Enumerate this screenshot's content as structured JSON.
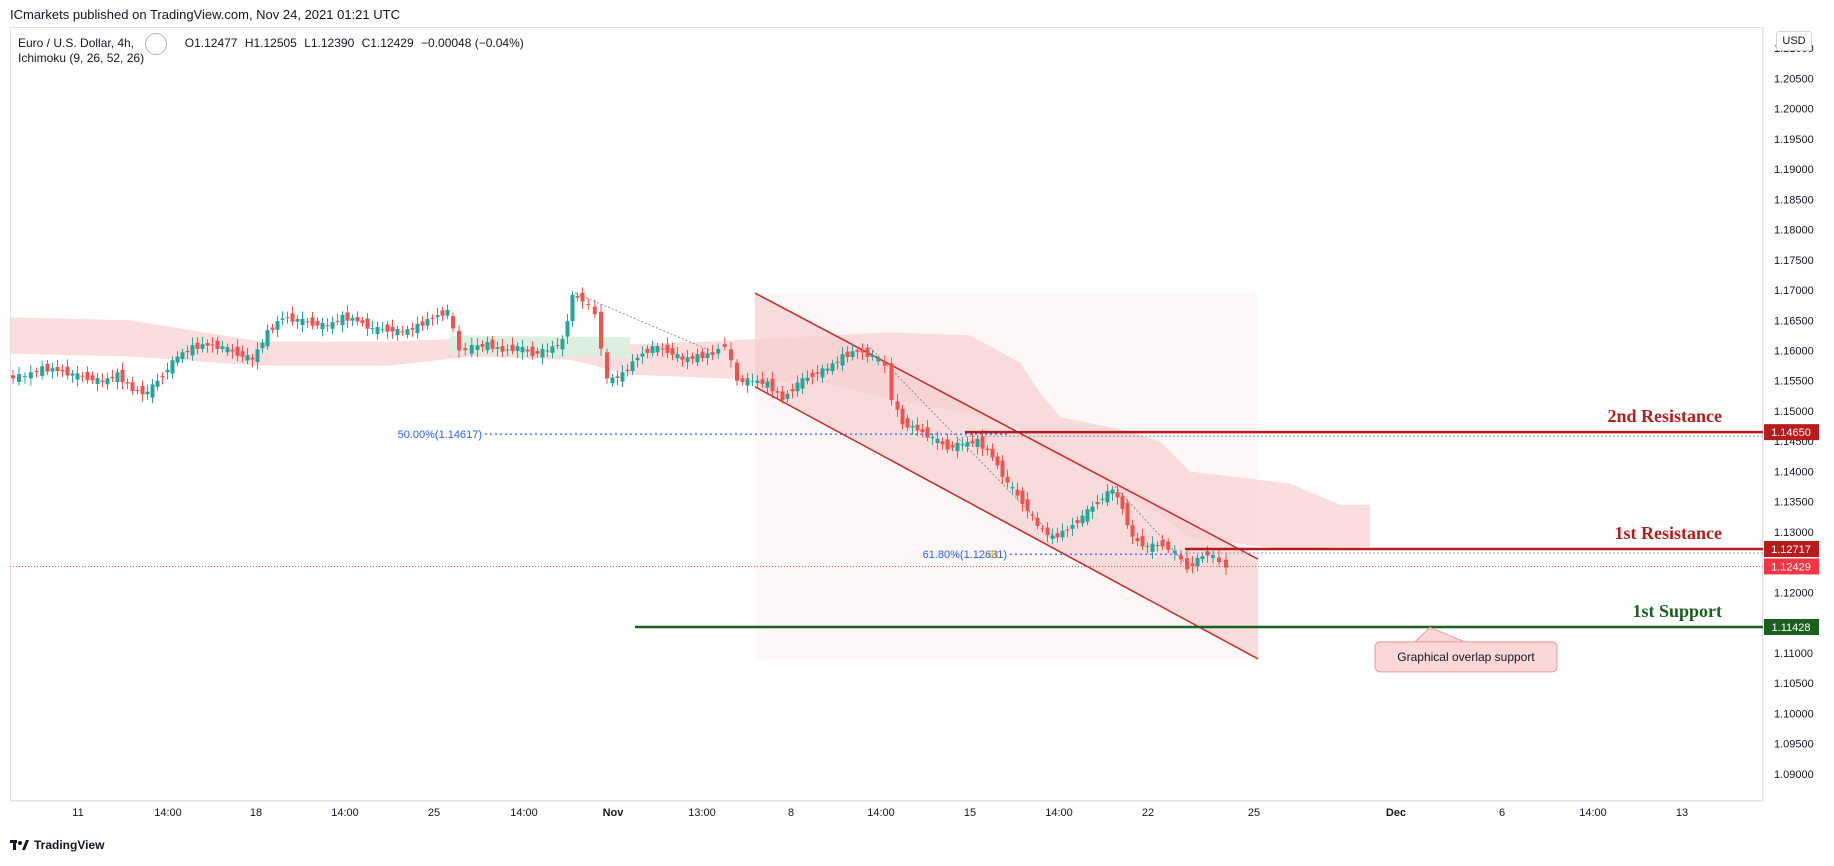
{
  "header": {
    "published_text": "ICmarkets published on TradingView.com, Nov 24, 2021 01:21 UTC"
  },
  "legend": {
    "symbol": "Euro / U.S. Dollar, 4h,",
    "open": "O1.12477",
    "high": "H1.12505",
    "low": "L1.12390",
    "close": "C1.12429",
    "change": "−0.00048 (−0.04%)",
    "indicator": "Ichimoku (9, 26, 52, 26)"
  },
  "currency": "USD",
  "footer": {
    "brand": "TradingView",
    "logo_icon": "tradingview-logo-icon"
  },
  "colors": {
    "up": "#26a69a",
    "down": "#ef5350",
    "resistance": "#b71c1c",
    "support": "#1b5e20",
    "fib": "#2962ff",
    "cloud_bear": "#fbd7d7",
    "cloud_bull": "#d8efdf",
    "channel_fill": "#f6d0d0"
  },
  "chart_data": {
    "type": "candlestick",
    "y_axis": {
      "ylim": [
        1.0855,
        1.2135
      ],
      "tick_values": [
        1.09,
        1.095,
        1.1,
        1.105,
        1.11,
        1.115,
        1.12,
        1.125,
        1.13,
        1.135,
        1.14,
        1.145,
        1.15,
        1.155,
        1.16,
        1.165,
        1.17,
        1.175,
        1.18,
        1.185,
        1.19,
        1.195,
        1.2,
        1.205,
        1.21
      ],
      "tick_labels": [
        "1.09000",
        "1.09500",
        "1.10000",
        "1.10500",
        "1.11000",
        "1.11500",
        "1.12000",
        "1.12500",
        "1.13000",
        "1.13500",
        "1.14000",
        "1.14500",
        "1.15000",
        "1.15500",
        "1.16000",
        "1.16500",
        "1.17000",
        "1.17500",
        "1.18000",
        "1.18500",
        "1.19000",
        "1.19500",
        "1.20000",
        "1.20500",
        "1.21000"
      ]
    },
    "x_axis": {
      "labels": [
        "11",
        "14:00",
        "18",
        "14:00",
        "25",
        "14:00",
        "Nov",
        "13:00",
        "8",
        "14:00",
        "15",
        "14:00",
        "22",
        "25",
        "Dec",
        "6",
        "14:00",
        "13"
      ],
      "bold": [
        false,
        false,
        false,
        false,
        false,
        false,
        true,
        false,
        false,
        false,
        false,
        false,
        false,
        false,
        true,
        false,
        false,
        false
      ]
    },
    "price_path": [
      [
        0,
        1.1555
      ],
      [
        18,
        1.1558
      ],
      [
        35,
        1.157
      ],
      [
        50,
        1.1568
      ],
      [
        65,
        1.156
      ],
      [
        80,
        1.1555
      ],
      [
        95,
        1.1548
      ],
      [
        110,
        1.156
      ],
      [
        125,
        1.1535
      ],
      [
        140,
        1.153
      ],
      [
        155,
        1.156
      ],
      [
        170,
        1.159
      ],
      [
        185,
        1.1605
      ],
      [
        200,
        1.161
      ],
      [
        215,
        1.1605
      ],
      [
        230,
        1.1595
      ],
      [
        245,
        1.1585
      ],
      [
        260,
        1.163
      ],
      [
        275,
        1.1655
      ],
      [
        290,
        1.165
      ],
      [
        305,
        1.1645
      ],
      [
        320,
        1.164
      ],
      [
        335,
        1.1655
      ],
      [
        350,
        1.165
      ],
      [
        365,
        1.1635
      ],
      [
        380,
        1.1635
      ],
      [
        395,
        1.163
      ],
      [
        410,
        1.164
      ],
      [
        425,
        1.1655
      ],
      [
        440,
        1.1665
      ],
      [
        452,
        1.16
      ],
      [
        465,
        1.1605
      ],
      [
        480,
        1.161
      ],
      [
        495,
        1.16
      ],
      [
        510,
        1.1605
      ],
      [
        525,
        1.1595
      ],
      [
        540,
        1.16
      ],
      [
        555,
        1.1615
      ],
      [
        565,
        1.169
      ],
      [
        575,
        1.1685
      ],
      [
        588,
        1.166
      ],
      [
        600,
        1.155
      ],
      [
        615,
        1.156
      ],
      [
        630,
        1.159
      ],
      [
        645,
        1.1605
      ],
      [
        660,
        1.16
      ],
      [
        675,
        1.1585
      ],
      [
        690,
        1.159
      ],
      [
        705,
        1.1595
      ],
      [
        718,
        1.161
      ],
      [
        730,
        1.155
      ],
      [
        745,
        1.155
      ],
      [
        760,
        1.1545
      ],
      [
        775,
        1.152
      ],
      [
        790,
        1.1545
      ],
      [
        805,
        1.156
      ],
      [
        820,
        1.157
      ],
      [
        835,
        1.159
      ],
      [
        850,
        1.16
      ],
      [
        865,
        1.159
      ],
      [
        878,
        1.1575
      ],
      [
        885,
        1.152
      ],
      [
        895,
        1.148
      ],
      [
        910,
        1.147
      ],
      [
        925,
        1.1455
      ],
      [
        940,
        1.144
      ],
      [
        955,
        1.1445
      ],
      [
        970,
        1.145
      ],
      [
        985,
        1.1425
      ],
      [
        1000,
        1.138
      ],
      [
        1015,
        1.135
      ],
      [
        1030,
        1.131
      ],
      [
        1045,
        1.129
      ],
      [
        1060,
        1.1305
      ],
      [
        1075,
        1.1325
      ],
      [
        1090,
        1.135
      ],
      [
        1105,
        1.137
      ],
      [
        1115,
        1.134
      ],
      [
        1125,
        1.129
      ],
      [
        1140,
        1.1275
      ],
      [
        1155,
        1.128
      ],
      [
        1168,
        1.1265
      ],
      [
        1180,
        1.124
      ],
      [
        1190,
        1.1255
      ],
      [
        1200,
        1.1265
      ],
      [
        1212,
        1.125
      ],
      [
        1220,
        1.1243
      ]
    ],
    "ichimoku_cloud": {
      "top": [
        [
          0,
          1.1655
        ],
        [
          120,
          1.165
        ],
        [
          250,
          1.1615
        ],
        [
          380,
          1.1615
        ],
        [
          460,
          1.162
        ],
        [
          560,
          1.162
        ],
        [
          620,
          1.161
        ],
        [
          700,
          1.1615
        ],
        [
          760,
          1.162
        ],
        [
          820,
          1.1625
        ],
        [
          880,
          1.163
        ],
        [
          960,
          1.1625
        ],
        [
          1010,
          1.158
        ],
        [
          1030,
          1.153
        ],
        [
          1050,
          1.149
        ],
        [
          1080,
          1.148
        ],
        [
          1110,
          1.147
        ],
        [
          1150,
          1.145
        ],
        [
          1180,
          1.14
        ],
        [
          1230,
          1.139
        ],
        [
          1280,
          1.138
        ],
        [
          1330,
          1.1345
        ],
        [
          1360,
          1.1345
        ]
      ],
      "bottom": [
        [
          0,
          1.1595
        ],
        [
          120,
          1.159
        ],
        [
          250,
          1.1575
        ],
        [
          380,
          1.1575
        ],
        [
          460,
          1.159
        ],
        [
          560,
          1.1585
        ],
        [
          620,
          1.156
        ],
        [
          700,
          1.1555
        ],
        [
          760,
          1.155
        ],
        [
          820,
          1.1545
        ],
        [
          880,
          1.152
        ],
        [
          960,
          1.1495
        ],
        [
          1010,
          1.147
        ],
        [
          1030,
          1.144
        ],
        [
          1050,
          1.142
        ],
        [
          1080,
          1.14
        ],
        [
          1110,
          1.137
        ],
        [
          1150,
          1.133
        ],
        [
          1180,
          1.129
        ],
        [
          1230,
          1.128
        ],
        [
          1280,
          1.127
        ],
        [
          1330,
          1.1275
        ],
        [
          1360,
          1.1275
        ]
      ]
    },
    "channel": {
      "upper_start": [
        745,
        1.1695
      ],
      "upper_end": [
        1248,
        1.1255
      ],
      "lower_start": [
        745,
        1.154
      ],
      "lower_end": [
        1248,
        1.109
      ],
      "shade_right_x": 1248
    },
    "fib_levels": [
      {
        "label": "50.00%(1.14617)",
        "value": 1.14617,
        "x_start": 475,
        "x_end": 1000
      },
      {
        "label": "61.80%(1.12631)",
        "value": 1.12631,
        "x_start": 1000,
        "x_end": 1175
      }
    ],
    "fib_overlap_label": "61",
    "levels": [
      {
        "name": "2nd Resistance",
        "value": 1.1465,
        "price_label": "1.14650",
        "x_start": 955,
        "kind": "resistance"
      },
      {
        "name": "1st Resistance",
        "value": 1.12717,
        "price_label": "1.12717",
        "x_start": 1175,
        "kind": "resistance"
      },
      {
        "name": "1st Support",
        "value": 1.11428,
        "price_label": "1.11428",
        "x_start": 625,
        "kind": "support"
      }
    ],
    "last_price": {
      "value": 1.12429,
      "price_label": "1.12429"
    },
    "annotation": {
      "text": "Graphical overlap support",
      "x": 1365,
      "y_value": 1.1095,
      "pointer_x": 1420,
      "pointer_y_value": 1.1142
    }
  }
}
